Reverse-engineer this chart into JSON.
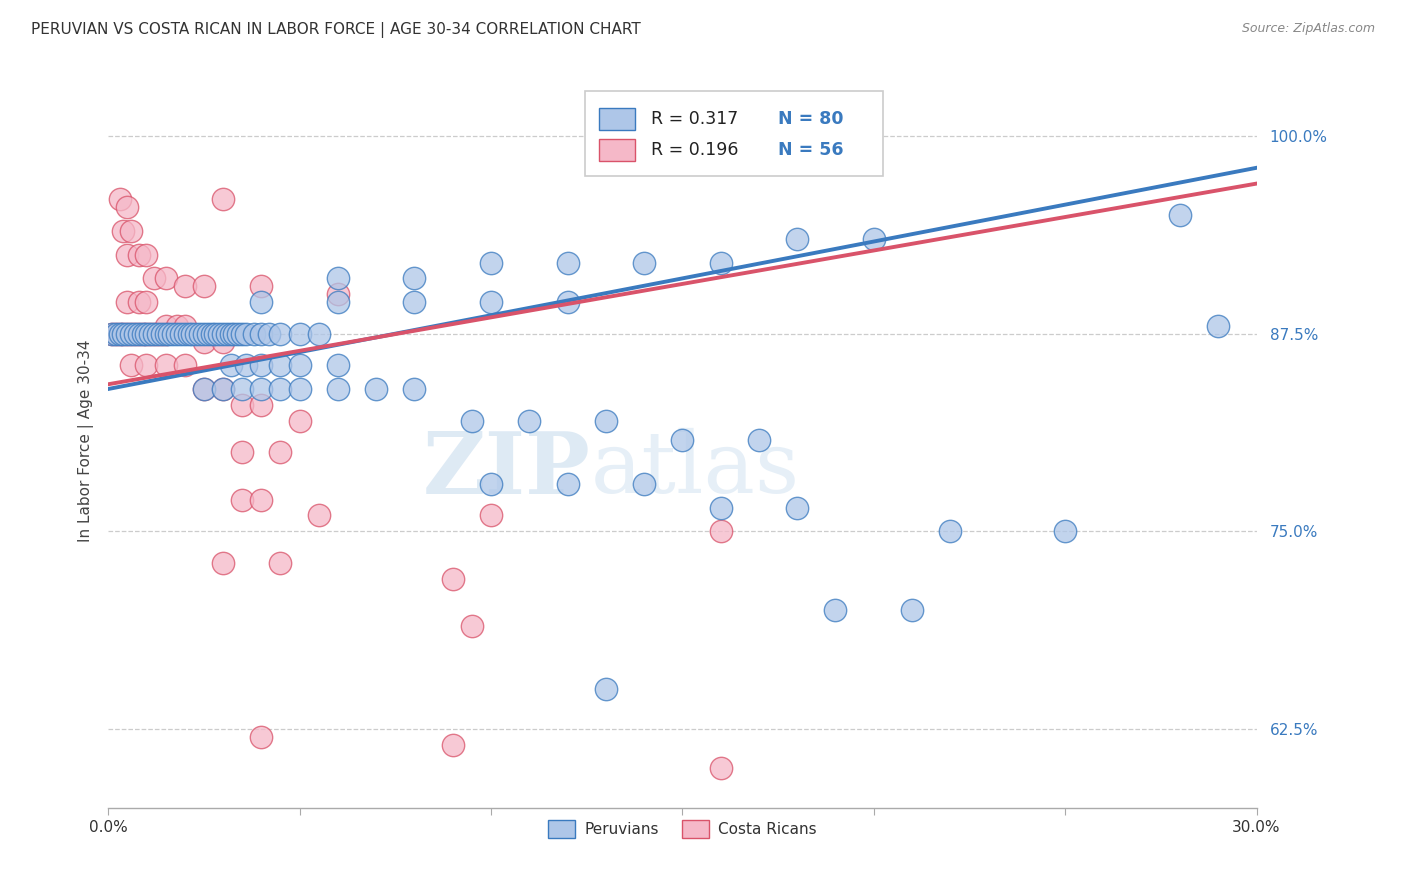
{
  "title": "PERUVIAN VS COSTA RICAN IN LABOR FORCE | AGE 30-34 CORRELATION CHART",
  "source": "Source: ZipAtlas.com",
  "ylabel": "In Labor Force | Age 30-34",
  "yticks": [
    "62.5%",
    "75.0%",
    "87.5%",
    "100.0%"
  ],
  "ytick_vals": [
    0.625,
    0.75,
    0.875,
    1.0
  ],
  "xlim": [
    0.0,
    0.3
  ],
  "ylim": [
    0.575,
    1.04
  ],
  "blue_color": "#aec6e8",
  "pink_color": "#f5b8c8",
  "line_blue": "#3a7abf",
  "line_pink": "#d9536a",
  "watermark_zip": "ZIP",
  "watermark_atlas": "atlas",
  "blue_points": [
    [
      0.001,
      0.875
    ],
    [
      0.002,
      0.875
    ],
    [
      0.003,
      0.875
    ],
    [
      0.004,
      0.875
    ],
    [
      0.005,
      0.875
    ],
    [
      0.006,
      0.875
    ],
    [
      0.007,
      0.875
    ],
    [
      0.008,
      0.875
    ],
    [
      0.009,
      0.875
    ],
    [
      0.01,
      0.875
    ],
    [
      0.011,
      0.875
    ],
    [
      0.012,
      0.875
    ],
    [
      0.013,
      0.875
    ],
    [
      0.014,
      0.875
    ],
    [
      0.015,
      0.875
    ],
    [
      0.016,
      0.875
    ],
    [
      0.017,
      0.875
    ],
    [
      0.018,
      0.875
    ],
    [
      0.019,
      0.875
    ],
    [
      0.02,
      0.875
    ],
    [
      0.021,
      0.875
    ],
    [
      0.022,
      0.875
    ],
    [
      0.023,
      0.875
    ],
    [
      0.024,
      0.875
    ],
    [
      0.025,
      0.875
    ],
    [
      0.026,
      0.875
    ],
    [
      0.027,
      0.875
    ],
    [
      0.028,
      0.875
    ],
    [
      0.029,
      0.875
    ],
    [
      0.03,
      0.875
    ],
    [
      0.031,
      0.875
    ],
    [
      0.032,
      0.875
    ],
    [
      0.033,
      0.875
    ],
    [
      0.034,
      0.875
    ],
    [
      0.035,
      0.875
    ],
    [
      0.036,
      0.875
    ],
    [
      0.038,
      0.875
    ],
    [
      0.04,
      0.875
    ],
    [
      0.042,
      0.875
    ],
    [
      0.045,
      0.875
    ],
    [
      0.05,
      0.875
    ],
    [
      0.055,
      0.875
    ],
    [
      0.032,
      0.855
    ],
    [
      0.036,
      0.855
    ],
    [
      0.04,
      0.855
    ],
    [
      0.045,
      0.855
    ],
    [
      0.05,
      0.855
    ],
    [
      0.06,
      0.855
    ],
    [
      0.025,
      0.84
    ],
    [
      0.03,
      0.84
    ],
    [
      0.035,
      0.84
    ],
    [
      0.04,
      0.84
    ],
    [
      0.045,
      0.84
    ],
    [
      0.05,
      0.84
    ],
    [
      0.06,
      0.84
    ],
    [
      0.07,
      0.84
    ],
    [
      0.08,
      0.84
    ],
    [
      0.04,
      0.895
    ],
    [
      0.06,
      0.895
    ],
    [
      0.08,
      0.895
    ],
    [
      0.1,
      0.895
    ],
    [
      0.12,
      0.895
    ],
    [
      0.06,
      0.91
    ],
    [
      0.08,
      0.91
    ],
    [
      0.1,
      0.92
    ],
    [
      0.12,
      0.92
    ],
    [
      0.14,
      0.92
    ],
    [
      0.16,
      0.92
    ],
    [
      0.18,
      0.935
    ],
    [
      0.2,
      0.935
    ],
    [
      0.095,
      0.82
    ],
    [
      0.11,
      0.82
    ],
    [
      0.13,
      0.82
    ],
    [
      0.15,
      0.808
    ],
    [
      0.17,
      0.808
    ],
    [
      0.1,
      0.78
    ],
    [
      0.12,
      0.78
    ],
    [
      0.14,
      0.78
    ],
    [
      0.16,
      0.765
    ],
    [
      0.18,
      0.765
    ],
    [
      0.22,
      0.75
    ],
    [
      0.25,
      0.75
    ],
    [
      0.19,
      0.7
    ],
    [
      0.21,
      0.7
    ],
    [
      0.13,
      0.65
    ],
    [
      0.28,
      0.95
    ],
    [
      0.29,
      0.88
    ]
  ],
  "pink_points": [
    [
      0.001,
      0.875
    ],
    [
      0.002,
      0.875
    ],
    [
      0.003,
      0.875
    ],
    [
      0.004,
      0.875
    ],
    [
      0.005,
      0.875
    ],
    [
      0.006,
      0.875
    ],
    [
      0.007,
      0.875
    ],
    [
      0.008,
      0.875
    ],
    [
      0.009,
      0.875
    ],
    [
      0.01,
      0.875
    ],
    [
      0.011,
      0.875
    ],
    [
      0.012,
      0.875
    ],
    [
      0.013,
      0.875
    ],
    [
      0.014,
      0.875
    ],
    [
      0.015,
      0.875
    ],
    [
      0.003,
      0.96
    ],
    [
      0.005,
      0.955
    ],
    [
      0.004,
      0.94
    ],
    [
      0.006,
      0.94
    ],
    [
      0.03,
      0.96
    ],
    [
      0.005,
      0.925
    ],
    [
      0.008,
      0.925
    ],
    [
      0.01,
      0.925
    ],
    [
      0.012,
      0.91
    ],
    [
      0.015,
      0.91
    ],
    [
      0.02,
      0.905
    ],
    [
      0.025,
      0.905
    ],
    [
      0.04,
      0.905
    ],
    [
      0.06,
      0.9
    ],
    [
      0.005,
      0.895
    ],
    [
      0.008,
      0.895
    ],
    [
      0.01,
      0.895
    ],
    [
      0.015,
      0.88
    ],
    [
      0.018,
      0.88
    ],
    [
      0.02,
      0.88
    ],
    [
      0.025,
      0.87
    ],
    [
      0.03,
      0.87
    ],
    [
      0.006,
      0.855
    ],
    [
      0.01,
      0.855
    ],
    [
      0.015,
      0.855
    ],
    [
      0.02,
      0.855
    ],
    [
      0.025,
      0.84
    ],
    [
      0.03,
      0.84
    ],
    [
      0.035,
      0.83
    ],
    [
      0.04,
      0.83
    ],
    [
      0.05,
      0.82
    ],
    [
      0.035,
      0.8
    ],
    [
      0.045,
      0.8
    ],
    [
      0.035,
      0.77
    ],
    [
      0.04,
      0.77
    ],
    [
      0.055,
      0.76
    ],
    [
      0.03,
      0.73
    ],
    [
      0.045,
      0.73
    ],
    [
      0.1,
      0.76
    ],
    [
      0.09,
      0.72
    ],
    [
      0.16,
      0.75
    ],
    [
      0.095,
      0.69
    ],
    [
      0.04,
      0.62
    ],
    [
      0.09,
      0.615
    ],
    [
      0.16,
      0.6
    ]
  ],
  "blue_line": [
    [
      0.0,
      0.84
    ],
    [
      0.3,
      0.98
    ]
  ],
  "pink_line": [
    [
      0.0,
      0.843
    ],
    [
      0.3,
      0.97
    ]
  ]
}
